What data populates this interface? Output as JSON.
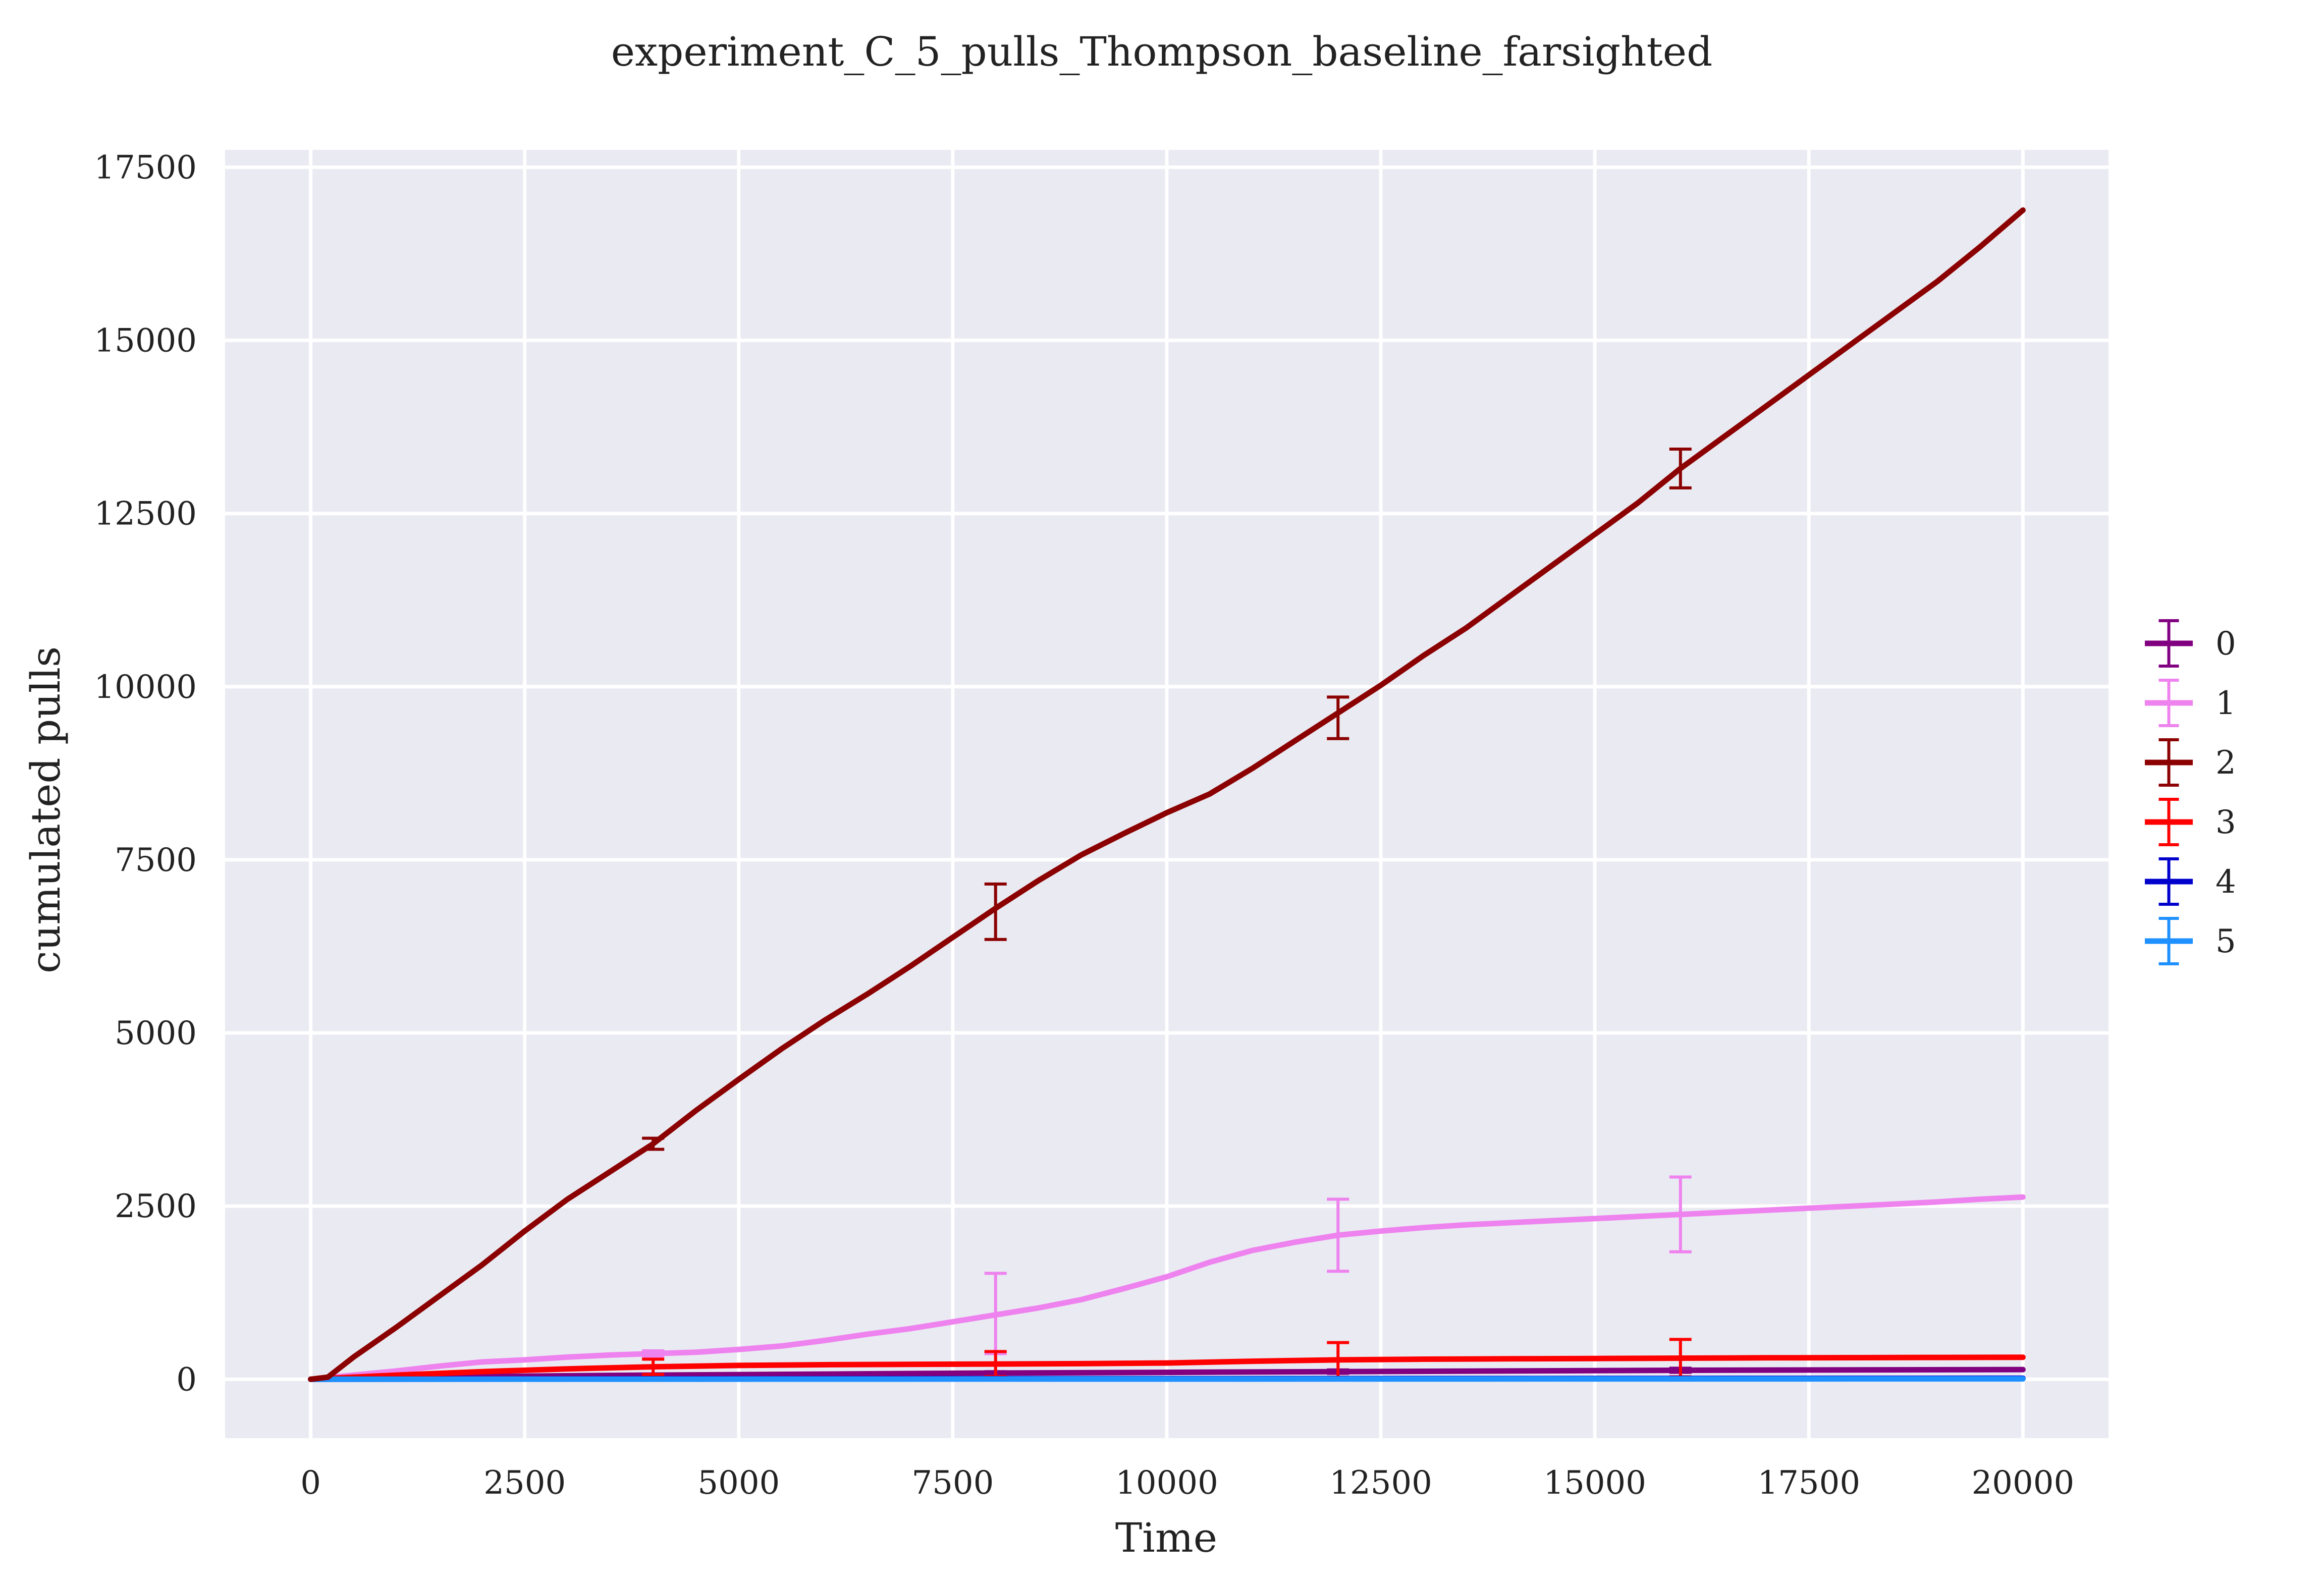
{
  "chart_data": {
    "type": "line",
    "title": "experiment_C_5_pulls_Thompson_baseline_farsighted",
    "xlabel": "Time",
    "ylabel": "cumulated pulls",
    "xlim": [
      -1000,
      21000
    ],
    "ylim": [
      -850,
      17750
    ],
    "x_ticks": [
      0,
      2500,
      5000,
      7500,
      10000,
      12500,
      15000,
      17500,
      20000
    ],
    "x_tick_labels": [
      "0",
      "2500",
      "5000",
      "7500",
      "10000",
      "12500",
      "15000",
      "17500",
      "20000"
    ],
    "y_ticks": [
      0,
      2500,
      5000,
      7500,
      10000,
      12500,
      15000,
      17500
    ],
    "y_tick_labels": [
      "0",
      "2500",
      "5000",
      "7500",
      "10000",
      "12500",
      "15000",
      "17500"
    ],
    "grid": true,
    "legend_position": "center-right",
    "background_color": "#eaeaf2",
    "grid_color": "#ffffff",
    "series": [
      {
        "name": "0",
        "color": "#800080",
        "x": [
          0,
          2000,
          4000,
          8000,
          12000,
          16000,
          20000
        ],
        "y": [
          0,
          40,
          60,
          90,
          110,
          130,
          140
        ],
        "errorbars": [
          {
            "x": 4000,
            "y": 60,
            "err": 15
          },
          {
            "x": 8000,
            "y": 90,
            "err": 20
          },
          {
            "x": 12000,
            "y": 110,
            "err": 25
          },
          {
            "x": 16000,
            "y": 130,
            "err": 30
          }
        ]
      },
      {
        "name": "1",
        "color": "#ee82ee",
        "x": [
          0,
          500,
          1000,
          1500,
          2000,
          2500,
          3000,
          3500,
          4000,
          4500,
          5000,
          5500,
          6000,
          6500,
          7000,
          7500,
          8000,
          8500,
          9000,
          9500,
          10000,
          10500,
          11000,
          11500,
          12000,
          12500,
          13000,
          13500,
          14000,
          14500,
          15000,
          15500,
          16000,
          16500,
          17000,
          17500,
          18000,
          18500,
          19000,
          19500,
          20000
        ],
        "y": [
          0,
          60,
          120,
          190,
          250,
          280,
          320,
          350,
          370,
          390,
          430,
          480,
          560,
          650,
          730,
          830,
          930,
          1030,
          1150,
          1310,
          1480,
          1690,
          1860,
          1980,
          2080,
          2140,
          2190,
          2230,
          2260,
          2290,
          2320,
          2350,
          2380,
          2410,
          2440,
          2470,
          2500,
          2530,
          2560,
          2600,
          2630
        ],
        "errorbars": [
          {
            "x": 4000,
            "y": 370,
            "err": 40
          },
          {
            "x": 8000,
            "y": 950,
            "err": 580
          },
          {
            "x": 12000,
            "y": 2080,
            "err": 520
          },
          {
            "x": 16000,
            "y": 2380,
            "err": 540
          }
        ]
      },
      {
        "name": "2",
        "color": "#8b0000",
        "x": [
          0,
          200,
          500,
          1000,
          1500,
          2000,
          2500,
          3000,
          3500,
          4000,
          4500,
          5000,
          5500,
          6000,
          6500,
          7000,
          7500,
          8000,
          8500,
          9000,
          9500,
          10000,
          10500,
          11000,
          11500,
          12000,
          12500,
          13000,
          13500,
          14000,
          14500,
          15000,
          15500,
          16000,
          16500,
          17000,
          17500,
          18000,
          18500,
          19000,
          19500,
          20000
        ],
        "y": [
          0,
          30,
          320,
          750,
          1200,
          1650,
          2140,
          2600,
          3000,
          3400,
          3880,
          4330,
          4770,
          5180,
          5560,
          5960,
          6380,
          6800,
          7200,
          7570,
          7880,
          8180,
          8450,
          8820,
          9220,
          9620,
          10020,
          10450,
          10850,
          11300,
          11750,
          12200,
          12650,
          13150,
          13600,
          14050,
          14500,
          14950,
          15400,
          15850,
          16350,
          16880
        ],
        "errorbars": [
          {
            "x": 4000,
            "y": 3400,
            "err": 80
          },
          {
            "x": 8000,
            "y": 6750,
            "err": 400
          },
          {
            "x": 12000,
            "y": 9550,
            "err": 300
          },
          {
            "x": 16000,
            "y": 13150,
            "err": 280
          }
        ]
      },
      {
        "name": "3",
        "color": "#ff0000",
        "x": [
          0,
          1000,
          2000,
          3000,
          4000,
          5000,
          6000,
          7000,
          8000,
          9000,
          10000,
          11000,
          12000,
          13000,
          14000,
          15000,
          16000,
          17000,
          18000,
          19000,
          20000
        ],
        "y": [
          0,
          60,
          110,
          150,
          180,
          200,
          210,
          215,
          220,
          225,
          235,
          260,
          280,
          290,
          295,
          300,
          305,
          310,
          312,
          315,
          318
        ],
        "errorbars": [
          {
            "x": 4000,
            "y": 180,
            "err": 110
          },
          {
            "x": 8000,
            "y": 220,
            "err": 180
          },
          {
            "x": 12000,
            "y": 280,
            "err": 250
          },
          {
            "x": 16000,
            "y": 305,
            "err": 270
          }
        ]
      },
      {
        "name": "4",
        "color": "#0000cd",
        "x": [
          0,
          4000,
          8000,
          12000,
          16000,
          20000
        ],
        "y": [
          0,
          5,
          8,
          10,
          12,
          14
        ],
        "errorbars": [
          {
            "x": 4000,
            "y": 5,
            "err": 5
          },
          {
            "x": 8000,
            "y": 8,
            "err": 6
          },
          {
            "x": 12000,
            "y": 10,
            "err": 7
          },
          {
            "x": 16000,
            "y": 12,
            "err": 8
          }
        ]
      },
      {
        "name": "5",
        "color": "#1e90ff",
        "x": [
          0,
          4000,
          8000,
          12000,
          16000,
          20000
        ],
        "y": [
          0,
          2,
          3,
          4,
          5,
          6
        ],
        "errorbars": [
          {
            "x": 4000,
            "y": 2,
            "err": 3
          },
          {
            "x": 8000,
            "y": 3,
            "err": 3
          },
          {
            "x": 12000,
            "y": 4,
            "err": 4
          },
          {
            "x": 16000,
            "y": 5,
            "err": 4
          }
        ]
      }
    ]
  }
}
